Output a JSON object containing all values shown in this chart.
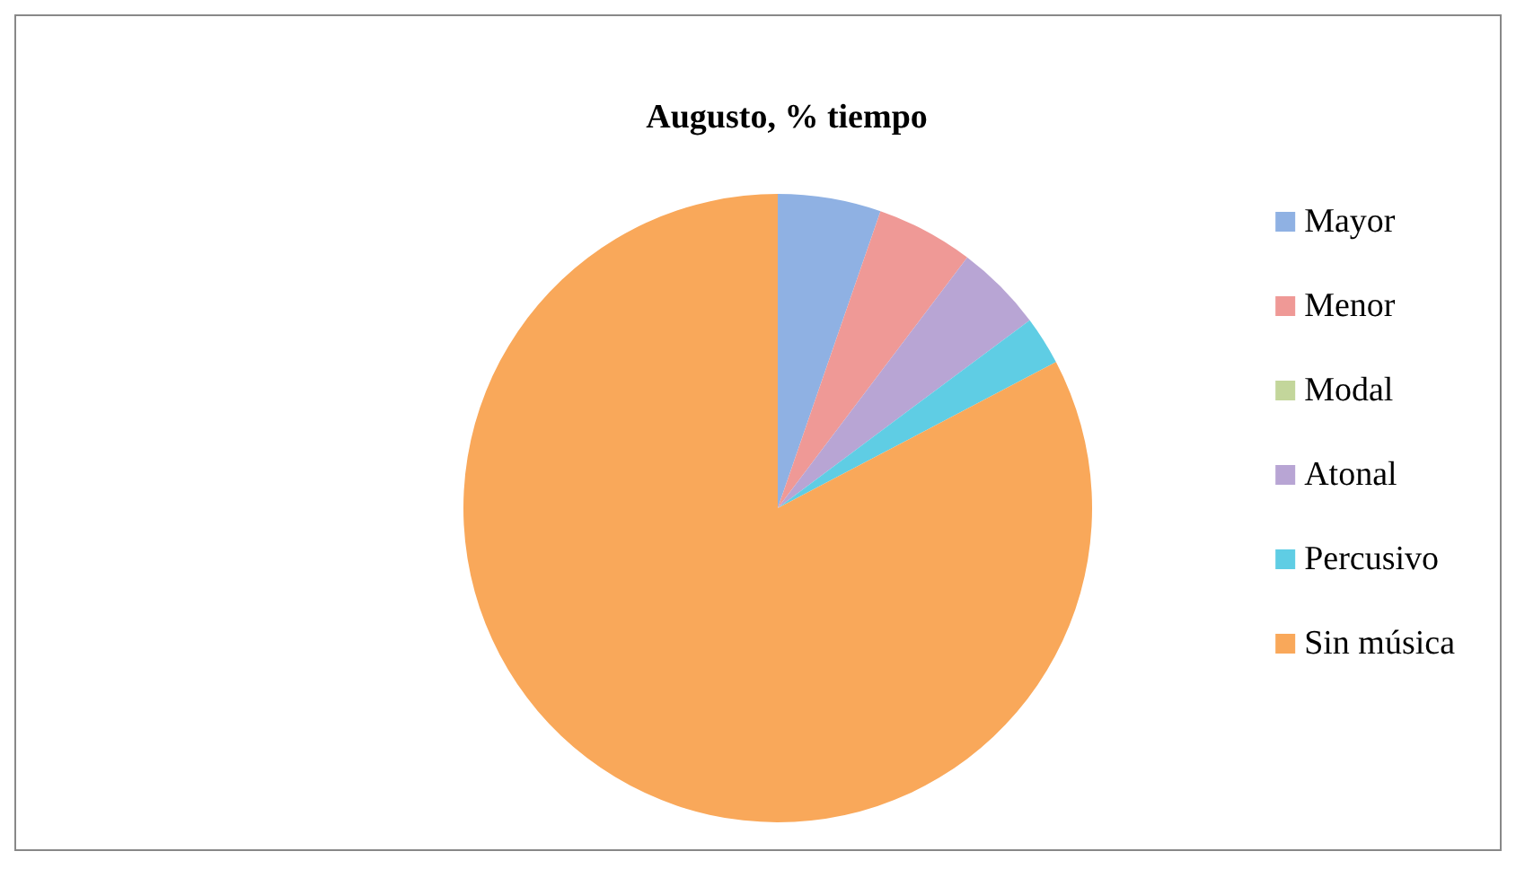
{
  "chart_data": {
    "type": "pie",
    "title": "Augusto, % tiempo",
    "categories": [
      "Mayor",
      "Menor",
      "Modal",
      "Atonal",
      "Percusivo",
      "Sin música"
    ],
    "values": [
      5.3,
      5.0,
      0,
      4.5,
      2.5,
      82.7
    ],
    "colors": [
      "#8fb1e3",
      "#ef9996",
      "#c3d69b",
      "#b8a5d4",
      "#5fcde4",
      "#f9a85a"
    ],
    "legend": "right"
  }
}
